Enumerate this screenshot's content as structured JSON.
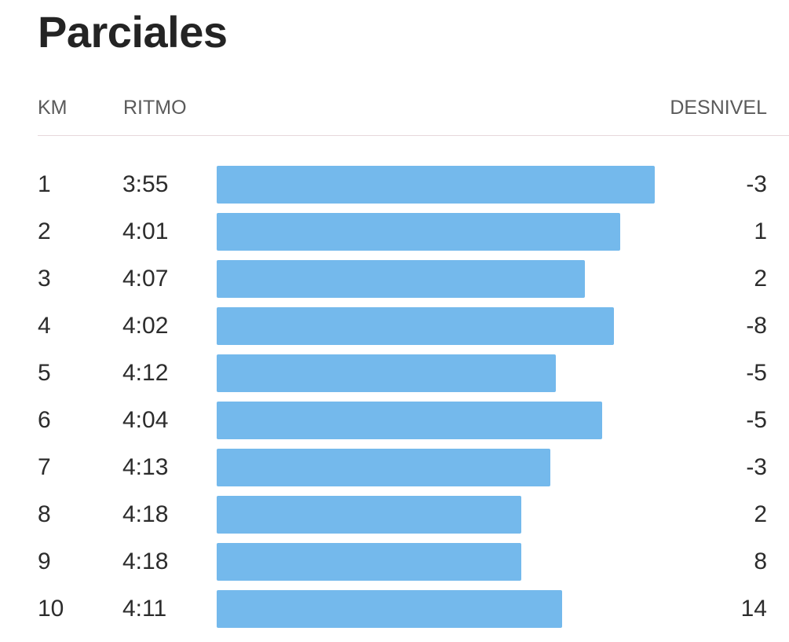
{
  "title": "Parciales",
  "headers": {
    "km": "KM",
    "pace": "RITMO",
    "elevation": "DESNIVEL"
  },
  "colors": {
    "bar": "#74b9ec",
    "divider": "#e7d8dc"
  },
  "splits": [
    {
      "km": "1",
      "pace": "3:55",
      "elevation": "-3",
      "pace_seconds": 235
    },
    {
      "km": "2",
      "pace": "4:01",
      "elevation": "1",
      "pace_seconds": 241
    },
    {
      "km": "3",
      "pace": "4:07",
      "elevation": "2",
      "pace_seconds": 247
    },
    {
      "km": "4",
      "pace": "4:02",
      "elevation": "-8",
      "pace_seconds": 242
    },
    {
      "km": "5",
      "pace": "4:12",
      "elevation": "-5",
      "pace_seconds": 252
    },
    {
      "km": "6",
      "pace": "4:04",
      "elevation": "-5",
      "pace_seconds": 244
    },
    {
      "km": "7",
      "pace": "4:13",
      "elevation": "-3",
      "pace_seconds": 253
    },
    {
      "km": "8",
      "pace": "4:18",
      "elevation": "2",
      "pace_seconds": 258
    },
    {
      "km": "9",
      "pace": "4:18",
      "elevation": "8",
      "pace_seconds": 258
    },
    {
      "km": "10",
      "pace": "4:11",
      "elevation": "14",
      "pace_seconds": 251
    }
  ]
}
